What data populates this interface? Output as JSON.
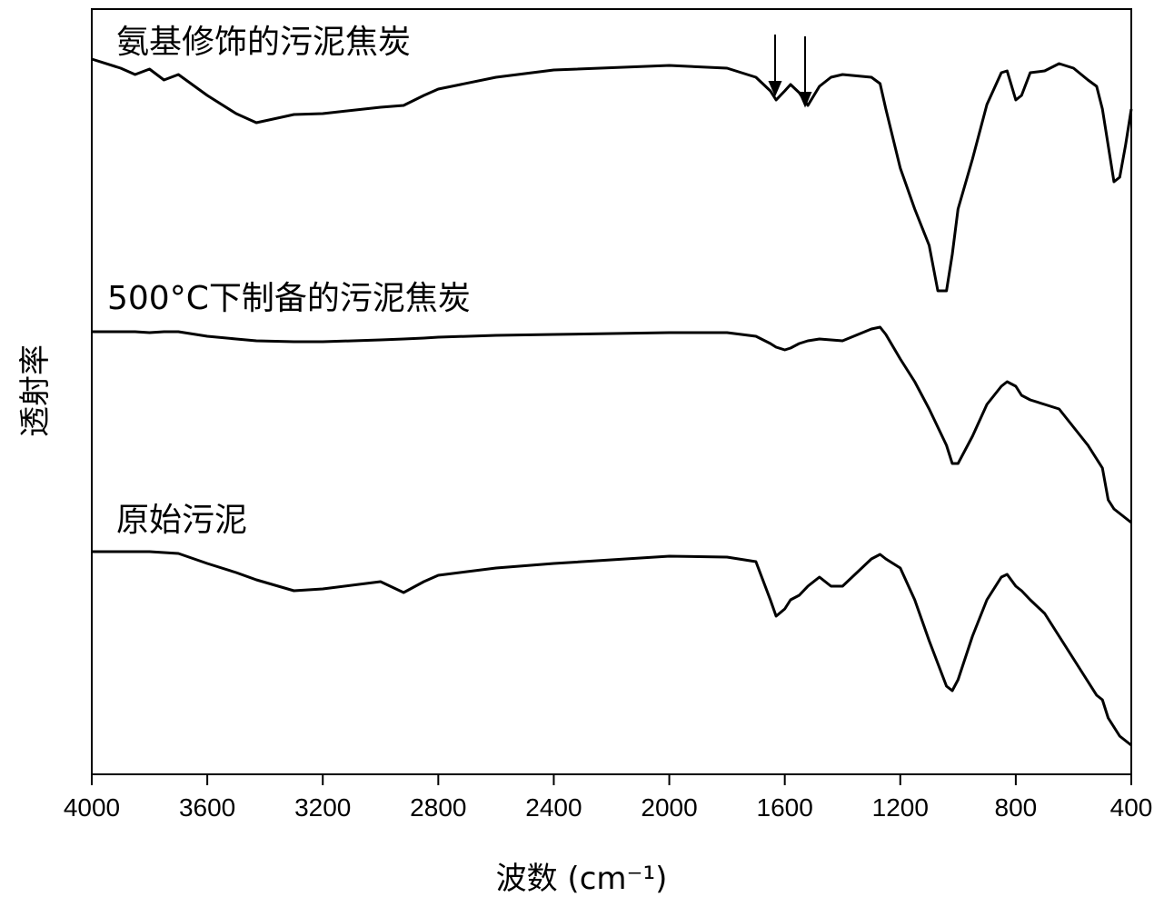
{
  "chart_data": {
    "type": "line",
    "xlabel": "波数 (cm⁻¹)",
    "ylabel": "透射率",
    "x": [
      4000,
      3900,
      3850,
      3800,
      3750,
      3700,
      3600,
      3500,
      3430,
      3300,
      3200,
      3000,
      2920,
      2850,
      2800,
      2600,
      2400,
      2000,
      1800,
      1700,
      1650,
      1630,
      1600,
      1580,
      1550,
      1520,
      1480,
      1440,
      1400,
      1300,
      1270,
      1250,
      1200,
      1150,
      1100,
      1070,
      1040,
      1020,
      1000,
      950,
      900,
      850,
      830,
      800,
      780,
      750,
      700,
      650,
      600,
      550,
      520,
      500,
      480,
      460,
      440,
      420,
      400
    ],
    "xlim": [
      4000,
      400
    ],
    "xticks": [
      4000,
      3600,
      3200,
      2800,
      2400,
      2000,
      1600,
      1200,
      800,
      400
    ],
    "ylim": [
      0,
      842
    ],
    "series": [
      {
        "name": "氨基修饰的污泥焦炭",
        "color": "#000000",
        "values": [
          787,
          777,
          770,
          776,
          764,
          770,
          747,
          727,
          717,
          726,
          727,
          734,
          736,
          747,
          754,
          767,
          775,
          780,
          777,
          767,
          752,
          742,
          752,
          759,
          750,
          736,
          757,
          767,
          770,
          767,
          760,
          732,
          667,
          622,
          582,
          532,
          532,
          572,
          622,
          677,
          737,
          772,
          774,
          742,
          747,
          772,
          774,
          782,
          777,
          764,
          757,
          732,
          692,
          652,
          657,
          692,
          732
        ]
      },
      {
        "name": "500°C下制备的污泥焦炭",
        "color": "#000000",
        "values": [
          487,
          487,
          487,
          486,
          487,
          487,
          482,
          479,
          477,
          476,
          476,
          478,
          479,
          480,
          481,
          483,
          484,
          486,
          486,
          482,
          474,
          470,
          467,
          469,
          474,
          477,
          479,
          478,
          477,
          490,
          492,
          484,
          457,
          432,
          402,
          382,
          362,
          342,
          342,
          372,
          407,
          427,
          432,
          427,
          417,
          412,
          407,
          402,
          382,
          362,
          347,
          337,
          302,
          292,
          287,
          282,
          277
        ]
      },
      {
        "name": "原始污泥",
        "color": "#000000",
        "values": [
          245,
          245,
          245,
          245,
          244,
          243,
          232,
          222,
          214,
          202,
          204,
          212,
          200,
          212,
          219,
          227,
          232,
          240,
          239,
          234,
          192,
          174,
          182,
          192,
          197,
          207,
          217,
          207,
          207,
          237,
          242,
          237,
          227,
          192,
          147,
          122,
          97,
          92,
          104,
          152,
          192,
          217,
          220,
          207,
          202,
          192,
          177,
          152,
          127,
          102,
          87,
          82,
          62,
          52,
          42,
          37,
          32
        ]
      }
    ]
  }
}
